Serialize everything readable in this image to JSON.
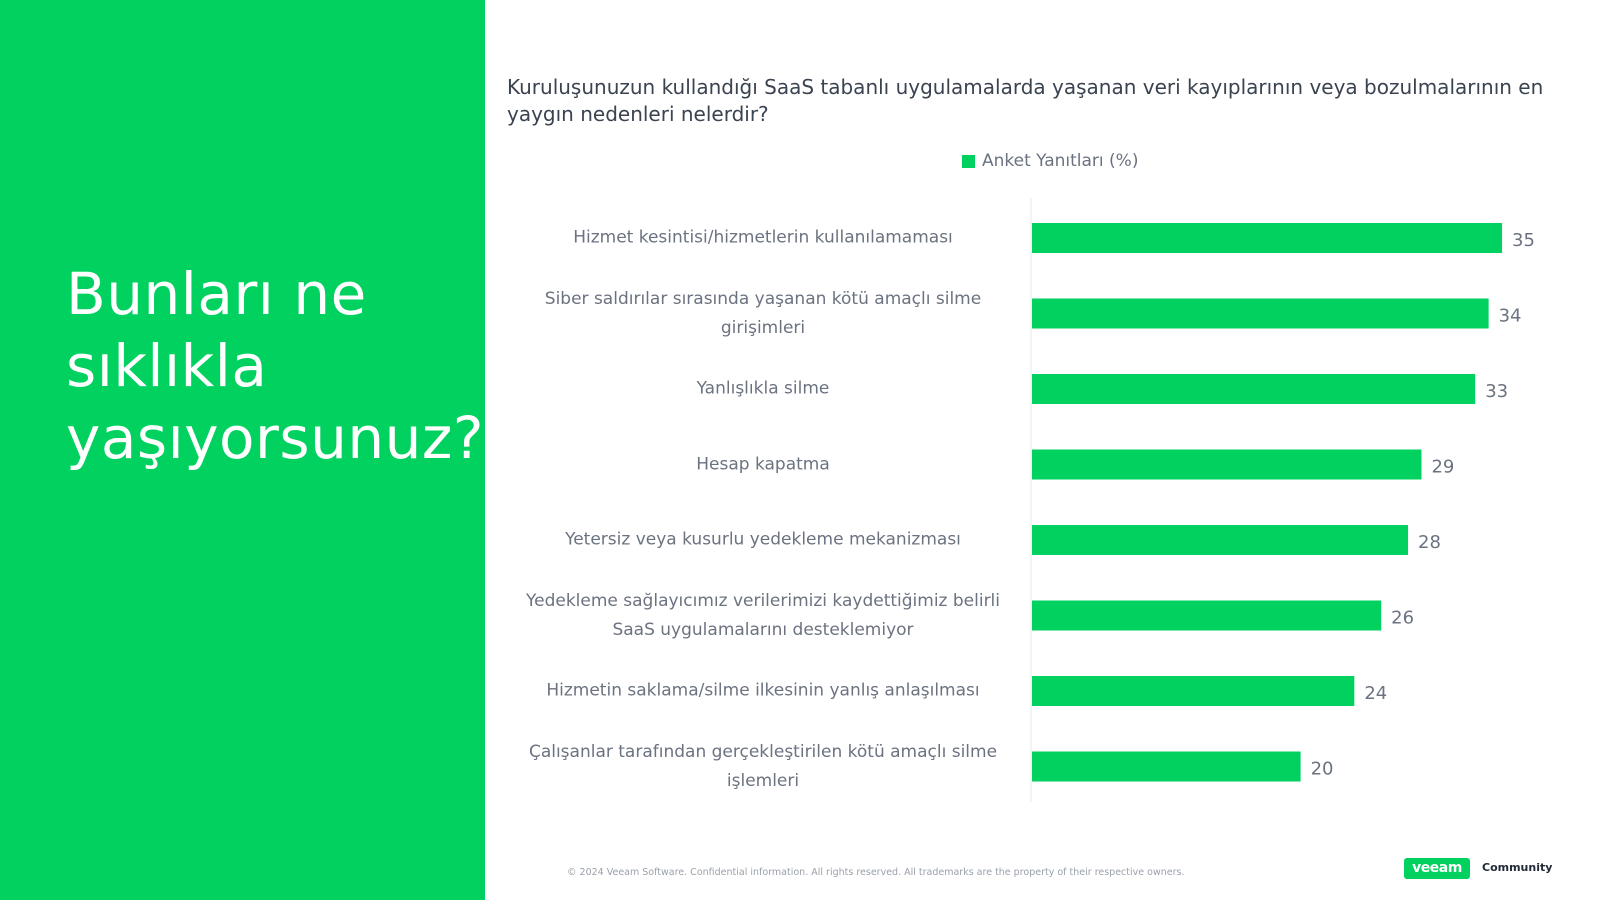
{
  "headline": "Bunları ne sıklıkla yaşıyorsunuz?",
  "colors": {
    "accent": "#00d15f",
    "text": "#6b7280",
    "title": "#3a4350"
  },
  "chart_data": {
    "type": "bar",
    "orientation": "horizontal",
    "title": "Kuruluşunuzun kullandığı SaaS tabanlı uygulamalarda yaşanan veri kayıplarının veya bozulmalarının en yaygın nedenleri nelerdir?",
    "legend": "top",
    "categories": [
      "Hizmet kesintisi/hizmetlerin kullanılamaması",
      "Siber saldırılar sırasında yaşanan kötü amaçlı silme girişimleri",
      "Yanlışlıkla silme",
      "Hesap kapatma",
      "Yetersiz veya kusurlu yedekleme mekanizması",
      "Yedekleme sağlayıcımız verilerimizi kaydettiğimiz belirli SaaS uygulamalarını desteklemiyor",
      "Hizmetin saklama/silme ilkesinin yanlış anlaşılması",
      "Çalışanlar tarafından gerçekleştirilen kötü amaçlı silme işlemleri"
    ],
    "series": [
      {
        "name": "Anket Yanıtları (%)",
        "values": [
          35,
          34,
          33,
          29,
          28,
          26,
          24,
          20
        ]
      }
    ],
    "xlim": [
      0,
      40
    ],
    "grid": false
  },
  "footer": {
    "copyright": "© 2024 Veeam Software. Confidential information. All rights reserved. All trademarks are the property of their respective owners.",
    "logo": "veeam",
    "community": "Community"
  }
}
